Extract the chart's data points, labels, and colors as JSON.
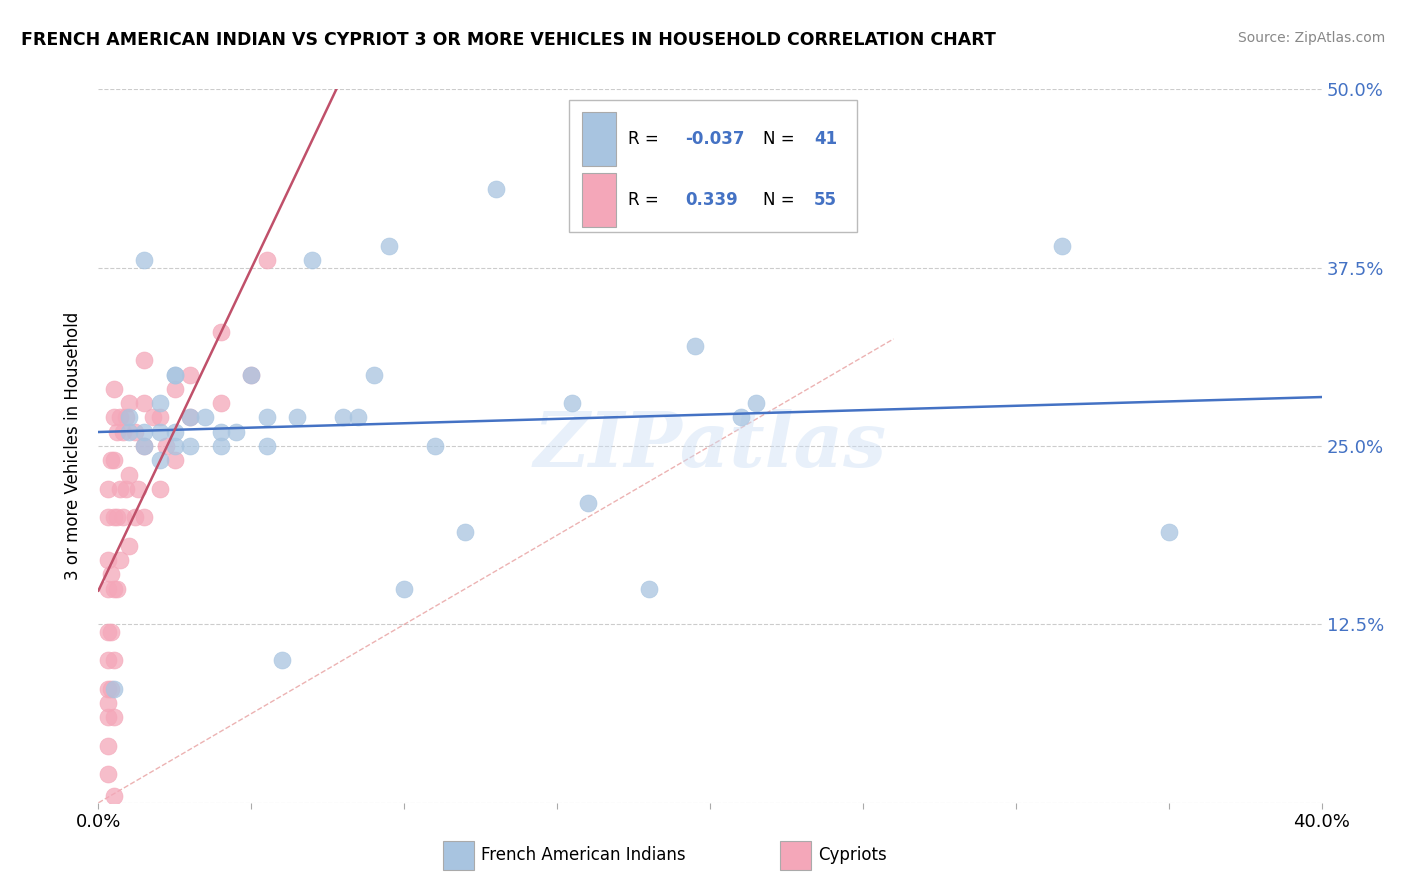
{
  "title": "FRENCH AMERICAN INDIAN VS CYPRIOT 3 OR MORE VEHICLES IN HOUSEHOLD CORRELATION CHART",
  "source": "Source: ZipAtlas.com",
  "ylabel": "3 or more Vehicles in Household",
  "xlabel_french": "French American Indians",
  "xlabel_cypriot": "Cypriots",
  "xmin": 0.0,
  "xmax": 0.4,
  "ymin": 0.0,
  "ymax": 0.5,
  "ytick_vals": [
    0.0,
    0.125,
    0.25,
    0.375,
    0.5
  ],
  "ytick_labels": [
    "",
    "12.5%",
    "25.0%",
    "37.5%",
    "50.0%"
  ],
  "xtick_vals": [
    0.0,
    0.05,
    0.1,
    0.15,
    0.2,
    0.25,
    0.3,
    0.35,
    0.4
  ],
  "xtick_labels": [
    "0.0%",
    "",
    "",
    "",
    "",
    "",
    "",
    "",
    "40.0%"
  ],
  "R_french": "-0.037",
  "N_french": "41",
  "R_cypriot": "0.339",
  "N_cypriot": "55",
  "french_color": "#a8c4e0",
  "cypriot_color": "#f4a7b9",
  "french_line_color": "#4472c4",
  "cypriot_line_color": "#c0506a",
  "watermark": "ZIPatlas",
  "french_points_x": [
    0.005,
    0.01,
    0.015,
    0.015,
    0.02,
    0.02,
    0.025,
    0.025,
    0.03,
    0.03,
    0.035,
    0.04,
    0.04,
    0.045,
    0.05,
    0.055,
    0.055,
    0.06,
    0.065,
    0.07,
    0.08,
    0.085,
    0.09,
    0.095,
    0.1,
    0.11,
    0.12,
    0.13,
    0.155,
    0.16,
    0.18,
    0.195,
    0.21,
    0.215,
    0.315,
    0.35,
    0.01,
    0.015,
    0.02,
    0.025,
    0.025
  ],
  "french_points_y": [
    0.08,
    0.27,
    0.26,
    0.38,
    0.28,
    0.24,
    0.3,
    0.25,
    0.27,
    0.25,
    0.27,
    0.26,
    0.25,
    0.26,
    0.3,
    0.27,
    0.25,
    0.1,
    0.27,
    0.38,
    0.27,
    0.27,
    0.3,
    0.39,
    0.15,
    0.25,
    0.19,
    0.43,
    0.28,
    0.21,
    0.15,
    0.32,
    0.27,
    0.28,
    0.39,
    0.19,
    0.26,
    0.25,
    0.26,
    0.26,
    0.3
  ],
  "cypriot_points_x": [
    0.003,
    0.003,
    0.003,
    0.003,
    0.003,
    0.003,
    0.003,
    0.003,
    0.003,
    0.003,
    0.003,
    0.004,
    0.004,
    0.004,
    0.004,
    0.005,
    0.005,
    0.005,
    0.005,
    0.005,
    0.005,
    0.005,
    0.006,
    0.006,
    0.006,
    0.007,
    0.007,
    0.007,
    0.008,
    0.008,
    0.009,
    0.009,
    0.01,
    0.01,
    0.01,
    0.012,
    0.012,
    0.013,
    0.015,
    0.015,
    0.015,
    0.015,
    0.018,
    0.02,
    0.02,
    0.022,
    0.025,
    0.025,
    0.03,
    0.03,
    0.04,
    0.04,
    0.05,
    0.055,
    0.005
  ],
  "cypriot_points_y": [
    0.02,
    0.04,
    0.06,
    0.07,
    0.08,
    0.1,
    0.12,
    0.15,
    0.17,
    0.2,
    0.22,
    0.08,
    0.12,
    0.16,
    0.24,
    0.06,
    0.1,
    0.15,
    0.2,
    0.24,
    0.27,
    0.29,
    0.15,
    0.2,
    0.26,
    0.17,
    0.22,
    0.27,
    0.2,
    0.26,
    0.22,
    0.27,
    0.18,
    0.23,
    0.28,
    0.2,
    0.26,
    0.22,
    0.2,
    0.25,
    0.28,
    0.31,
    0.27,
    0.22,
    0.27,
    0.25,
    0.24,
    0.29,
    0.27,
    0.3,
    0.28,
    0.33,
    0.3,
    0.38,
    0.005
  ]
}
